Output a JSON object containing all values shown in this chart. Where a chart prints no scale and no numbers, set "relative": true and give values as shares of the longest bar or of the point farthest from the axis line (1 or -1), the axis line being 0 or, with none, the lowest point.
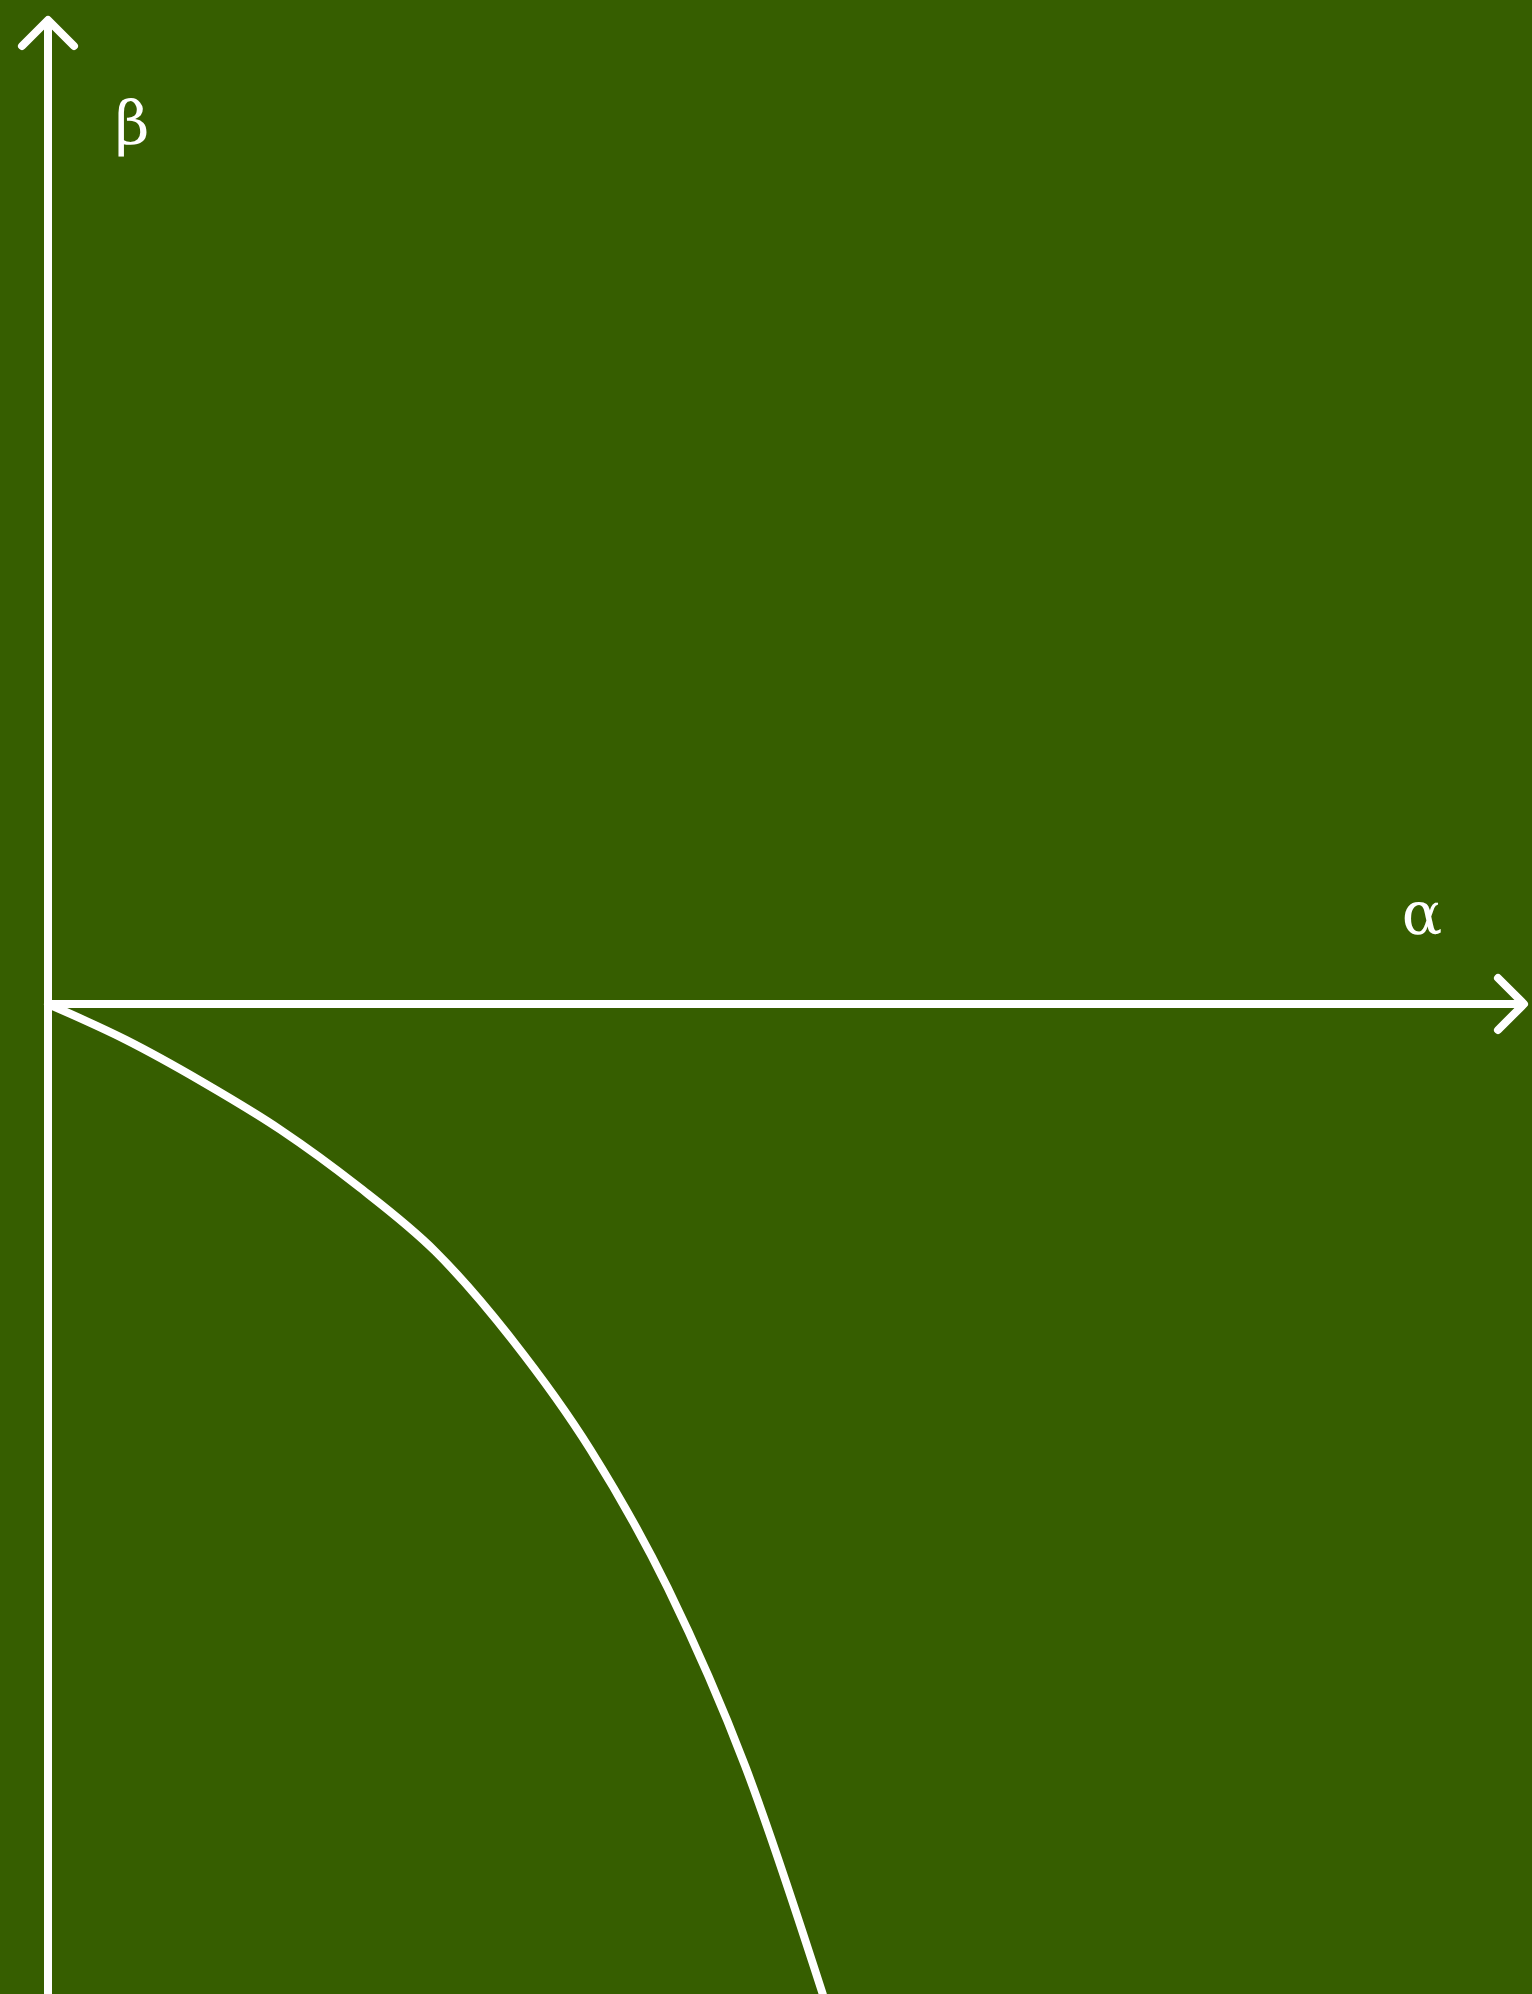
{
  "chart_data": {
    "type": "line",
    "relative": true,
    "xlabel": "α",
    "annotations": [
      "β"
    ],
    "categories": [
      null,
      null,
      null,
      null,
      null,
      null,
      null,
      null,
      null,
      null,
      null,
      null,
      null,
      null,
      null,
      null,
      null,
      null,
      null,
      null
    ],
    "values": [
      0,
      -0.036,
      -0.079,
      -0.127,
      -0.184,
      -0.25,
      -0.34,
      -0.45,
      -0.59,
      -0.77,
      -1,
      null,
      null,
      null,
      null,
      null,
      null,
      null,
      null,
      null
    ],
    "color": "#ffffff",
    "marker": "none"
  }
}
